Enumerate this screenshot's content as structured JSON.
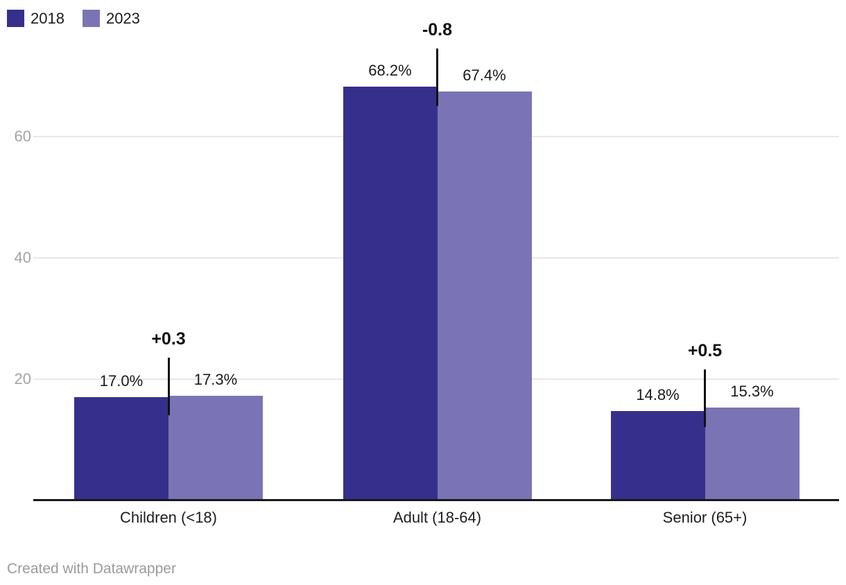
{
  "chart_data": {
    "type": "bar",
    "title": "",
    "categories": [
      "Children (<18)",
      "Adult (18-64)",
      "Senior (65+)"
    ],
    "series": [
      {
        "name": "2018",
        "color": "#36308c",
        "values": [
          17.0,
          68.2,
          14.8
        ],
        "labels": [
          "17.0%",
          "68.2%",
          "14.8%"
        ]
      },
      {
        "name": "2023",
        "color": "#7a74b5",
        "values": [
          17.3,
          67.4,
          15.3
        ],
        "labels": [
          "17.3%",
          "67.4%",
          "15.3%"
        ]
      }
    ],
    "diff_annotations": [
      "+0.3",
      "-0.8",
      "+0.5"
    ],
    "yticks": [
      20,
      40,
      60
    ],
    "ylim": [
      0,
      82.5
    ],
    "grid": "horizontal",
    "legend_position": "top-left",
    "colors": {
      "grid": "#e7e7e7",
      "axis": "#18181a",
      "tick_text": "#a3a3a3",
      "label_text": "#1a1a1a"
    }
  },
  "footer": {
    "text": "Created with Datawrapper"
  }
}
